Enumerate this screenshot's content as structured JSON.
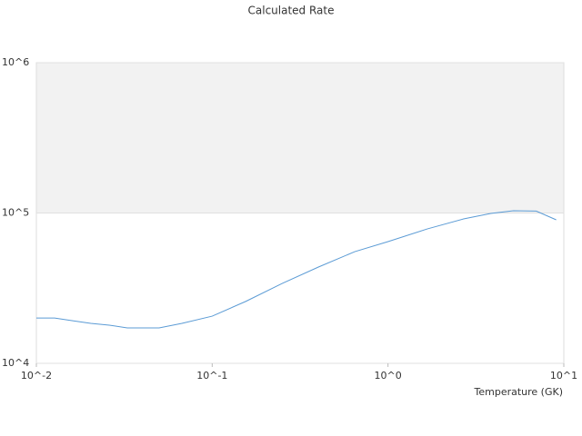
{
  "chart_data": {
    "type": "line",
    "title": "Calculated Rate",
    "x_label": "Temperature (GK)",
    "log_x": true,
    "log_y": true,
    "xlim": [
      0.01,
      10
    ],
    "ylim": [
      10000,
      1000000
    ],
    "xticks": [
      {
        "value": 0.01,
        "label": "10^-2"
      },
      {
        "value": 0.1,
        "label": "10^-1"
      },
      {
        "value": 1,
        "label": "10^0"
      },
      {
        "value": 10,
        "label": "10^1"
      }
    ],
    "yticks": [
      {
        "value": 10000,
        "label": "10^4"
      },
      {
        "value": 100000,
        "label": "10^5"
      },
      {
        "value": 1000000,
        "label": "10^6"
      }
    ],
    "band": {
      "from": 100000,
      "to": 1000000,
      "color": "#f2f2f2"
    },
    "series": [
      {
        "color": "#5b9bd5",
        "x": [
          0.01,
          0.0127,
          0.0161,
          0.0204,
          0.026,
          0.0329,
          0.0499,
          0.0673,
          0.1,
          0.155,
          0.25,
          0.402,
          0.647,
          1,
          1.67,
          2.69,
          3.84,
          5.17,
          6.97,
          9.05
        ],
        "values": [
          20000,
          20000,
          19200,
          18450,
          17950,
          17200,
          17200,
          18450,
          20600,
          25800,
          34000,
          43700,
          55300,
          64500,
          78300,
          91300,
          99300,
          103500,
          103000,
          90100
        ]
      }
    ]
  }
}
